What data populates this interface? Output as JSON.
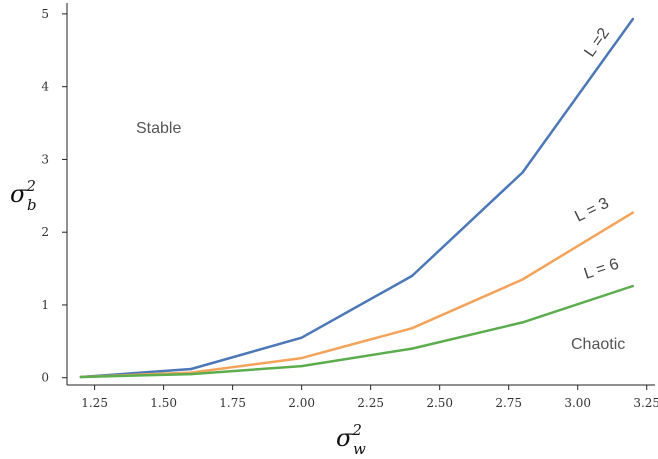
{
  "chart_data": {
    "type": "line",
    "x": [
      1.2,
      1.6,
      2.0,
      2.4,
      2.8,
      3.2
    ],
    "series": [
      {
        "name": "L =2",
        "color": "#4c78b8",
        "values": [
          0.01,
          0.12,
          0.55,
          1.4,
          2.82,
          4.93
        ]
      },
      {
        "name": "L = 3",
        "color": "#f4a35a",
        "values": [
          0.01,
          0.07,
          0.27,
          0.68,
          1.35,
          2.27
        ]
      },
      {
        "name": "L = 6",
        "color": "#5cad4e",
        "values": [
          0.01,
          0.05,
          0.16,
          0.4,
          0.76,
          1.26
        ]
      }
    ],
    "xticks": [
      "1.25",
      "1.50",
      "1.75",
      "2.00",
      "2.25",
      "2.50",
      "2.75",
      "3.00",
      "3.25"
    ],
    "yticks": [
      "0",
      "1",
      "2",
      "3",
      "4",
      "5"
    ],
    "xlim": [
      1.15,
      3.28
    ],
    "ylim": [
      -0.1,
      5.15
    ],
    "xlabel": {
      "base": "σ",
      "sup": "2",
      "sub": "w"
    },
    "ylabel": {
      "base": "σ",
      "sup": "2",
      "sub": "b"
    },
    "annotations": {
      "stable": "Stable",
      "chaotic": "Chaotic"
    },
    "grid": false,
    "legend": "none"
  }
}
